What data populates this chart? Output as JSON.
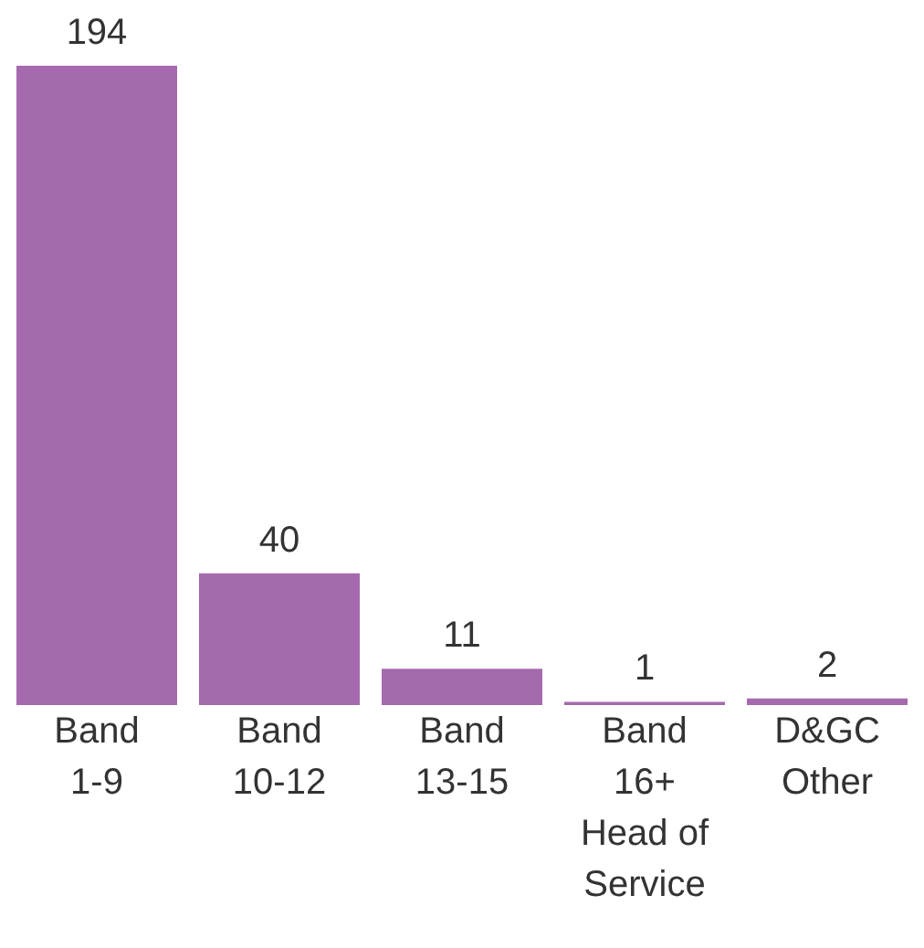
{
  "chart_data": {
    "type": "bar",
    "categories": [
      "Band\n1-9",
      "Band\n10-12",
      "Band\n13-15",
      "Band\n16+\nHead of\nService",
      "D&GC\nOther"
    ],
    "values": [
      194,
      40,
      11,
      1,
      2
    ],
    "color": "#a56aad",
    "data_labels": true
  }
}
